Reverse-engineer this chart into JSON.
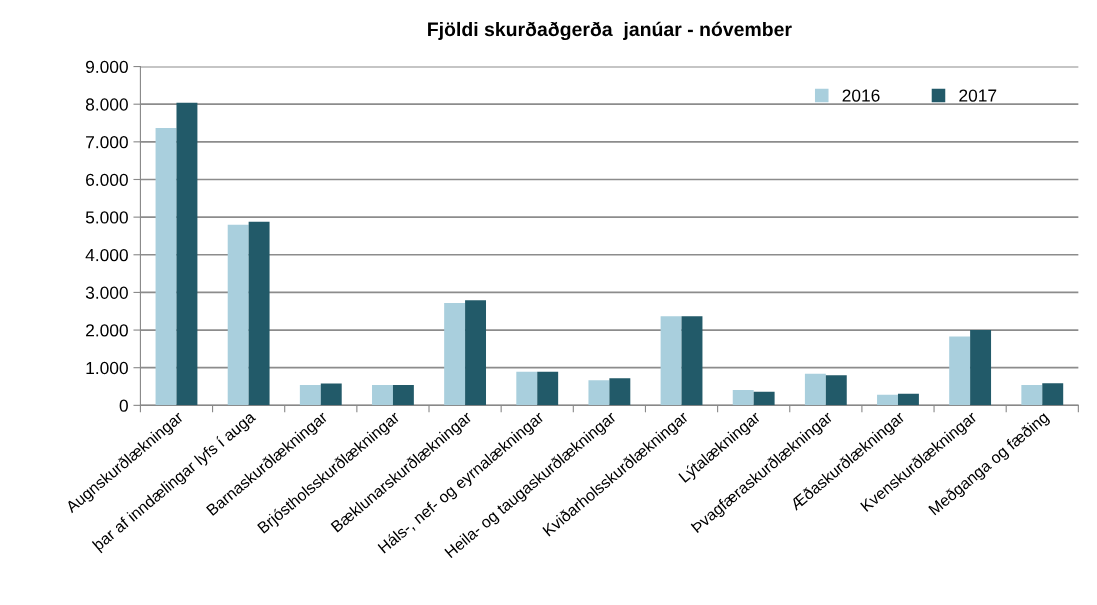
{
  "chart_data": {
    "type": "bar",
    "title": "Fjöldi skurðaðgerða  janúar - nóvember",
    "categories": [
      "Augnskurðlækningar",
      "þar af inndælingar lyfs í auga",
      "Barnaskurðlækningar",
      "Brjóstholsskurðlækningar",
      "Bæklunarskurðlækningar",
      "Háls-, nef- og eyrnalækningar",
      "Heila- og taugaskurðlækningar",
      "Kviðarholsskurðlækningar",
      "Lýtalækningar",
      "Þvagfæraskurðlækningar",
      "Æðaskurðlækningar",
      "Kvenskurðlækningar",
      "Meðganga og fæðing"
    ],
    "series": [
      {
        "name": "2016",
        "color": "#a9cfdd",
        "values": [
          7370,
          4800,
          540,
          540,
          2720,
          890,
          670,
          2370,
          410,
          840,
          280,
          1830,
          540
        ]
      },
      {
        "name": "2017",
        "color": "#225a69",
        "values": [
          8040,
          4880,
          580,
          540,
          2790,
          890,
          720,
          2370,
          360,
          800,
          310,
          2000,
          590
        ]
      }
    ],
    "ylim": [
      0,
      9000
    ],
    "yticks": [
      {
        "value": 0,
        "label": "0"
      },
      {
        "value": 1000,
        "label": "1.000"
      },
      {
        "value": 2000,
        "label": "2.000"
      },
      {
        "value": 3000,
        "label": "3.000"
      },
      {
        "value": 4000,
        "label": "4.000"
      },
      {
        "value": 5000,
        "label": "5.000"
      },
      {
        "value": 6000,
        "label": "6.000"
      },
      {
        "value": 7000,
        "label": "7.000"
      },
      {
        "value": 8000,
        "label": "8.000"
      },
      {
        "value": 9000,
        "label": "9.000"
      }
    ],
    "grid": "y",
    "legend": "top right"
  }
}
